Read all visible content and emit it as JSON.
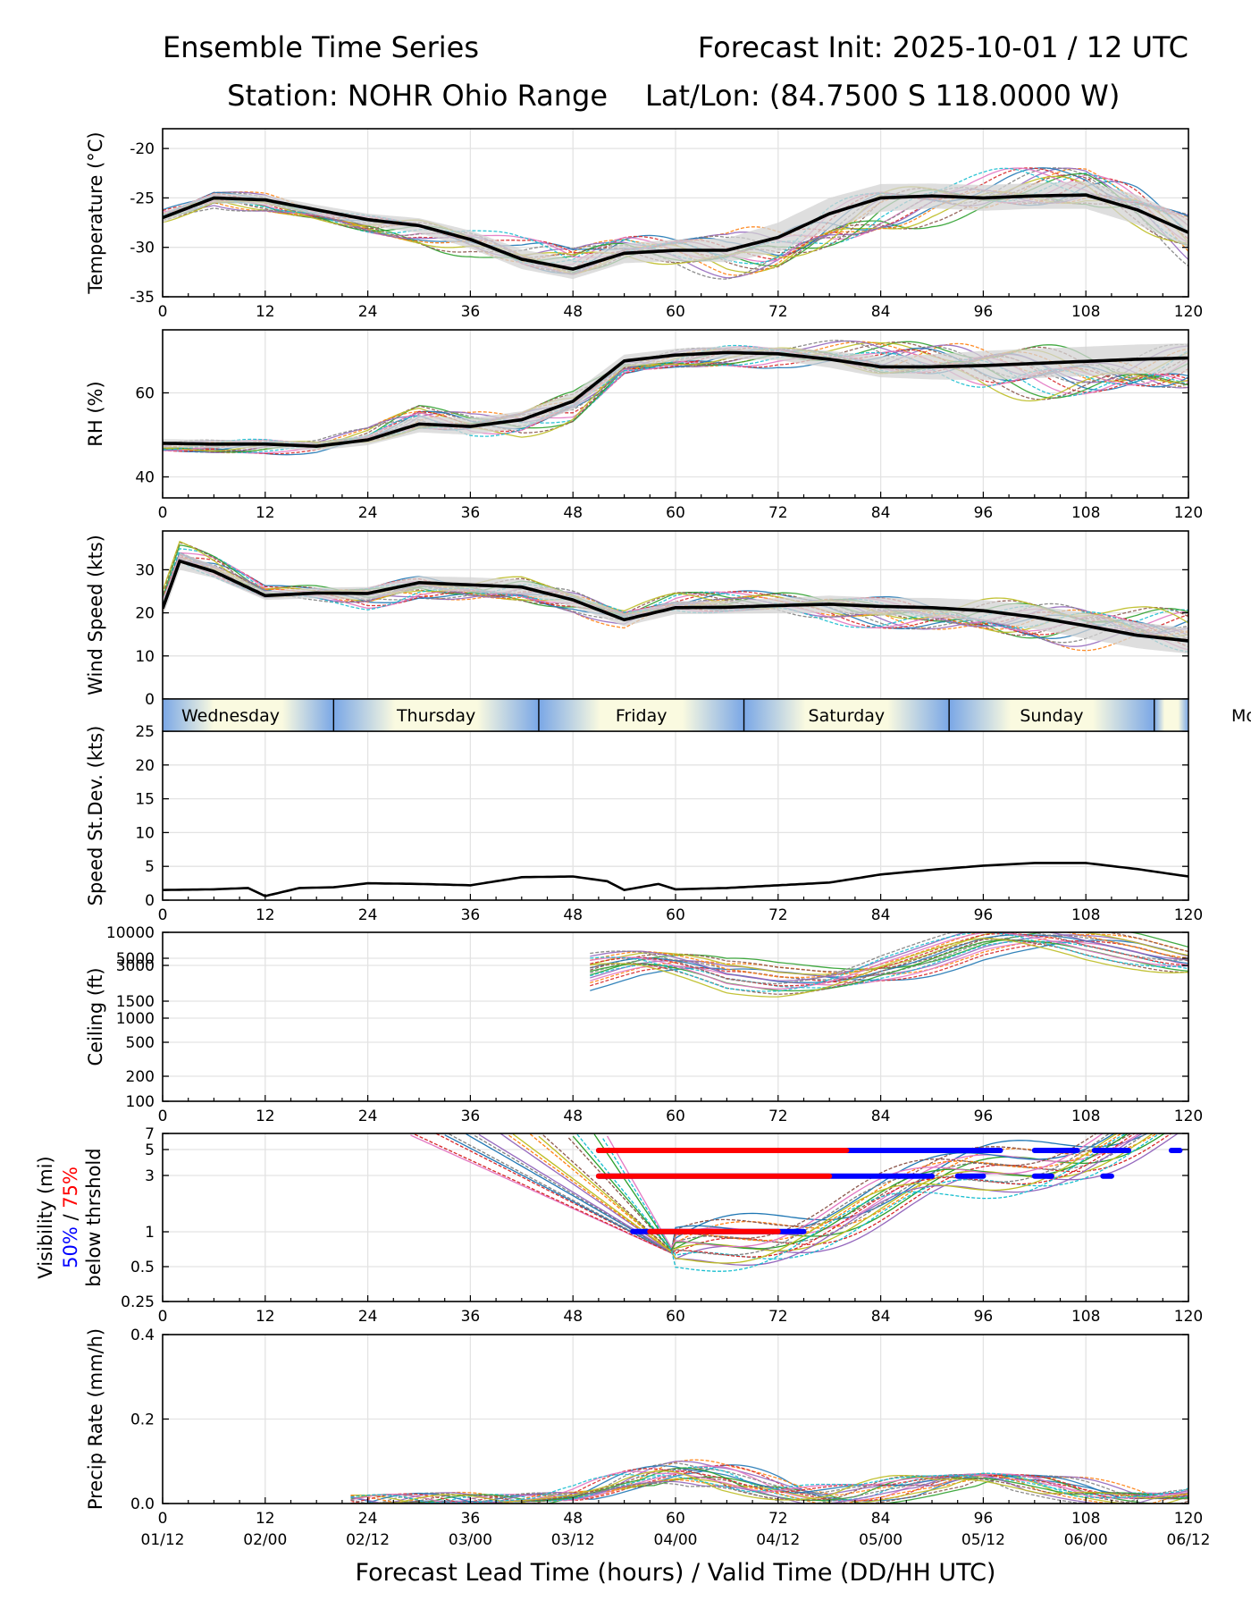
{
  "header": {
    "title_left": "Ensemble Time Series",
    "title_right": "Forecast Init: 2025-10-01 / 12 UTC",
    "station": "Station: NOHR Ohio Range",
    "latlon": "Lat/Lon: (84.7500 S 118.0000 W)"
  },
  "colors": {
    "mean": "#000000",
    "spread": "#d3d3d3",
    "grid": "#e3e3e3",
    "p50": "#0000ff",
    "p75": "#ff0000",
    "members": [
      "#1f77b4",
      "#ff7f0e",
      "#2ca02c",
      "#d62728",
      "#9467bd",
      "#8c564b",
      "#e377c2",
      "#7f7f7f",
      "#bcbd22",
      "#17becf"
    ]
  },
  "chart_data": [
    {
      "type": "line",
      "ylabel": "Temperature (°C)",
      "ylim": [
        -35,
        -18
      ],
      "yticks": [
        "-35",
        "-30",
        "-25",
        "-20"
      ],
      "x": [
        0,
        6,
        12,
        18,
        24,
        30,
        36,
        42,
        48,
        54,
        60,
        66,
        72,
        78,
        84,
        90,
        96,
        102,
        108,
        114,
        120
      ],
      "mean": [
        -27,
        -25,
        -25.2,
        -26.2,
        -27.2,
        -27.8,
        -29.2,
        -31.2,
        -32.2,
        -30.6,
        -30.3,
        -30.3,
        -29,
        -26.6,
        -25,
        -24.8,
        -25,
        -24.8,
        -24.7,
        -26.2,
        -28.5
      ],
      "spread": [
        1,
        1,
        1,
        1,
        1.2,
        1.5,
        1.8,
        2,
        2,
        2,
        2.2,
        2.4,
        3,
        3.2,
        2.8,
        2.5,
        2.6,
        2.6,
        2.8,
        3,
        3
      ]
    },
    {
      "type": "line",
      "ylabel": "RH (%)",
      "ylim": [
        35,
        75
      ],
      "yticks": [
        "40",
        "60"
      ],
      "x": [
        0,
        6,
        12,
        18,
        24,
        30,
        36,
        42,
        48,
        54,
        60,
        66,
        72,
        78,
        84,
        90,
        96,
        102,
        108,
        114,
        120
      ],
      "mean": [
        48,
        47.8,
        47.8,
        47.3,
        48.8,
        52.6,
        52,
        53.6,
        58,
        67.6,
        69,
        69.6,
        69.3,
        68,
        66.2,
        66.2,
        66.5,
        67,
        67.5,
        68,
        68.3
      ],
      "spread": [
        2,
        2,
        2,
        2,
        2.5,
        4,
        4,
        4,
        4,
        3,
        3,
        3,
        3,
        4,
        5,
        6,
        7,
        7,
        7,
        7,
        7
      ]
    },
    {
      "type": "line",
      "ylabel": "Wind Speed (kts)",
      "ylim": [
        0,
        39
      ],
      "yticks": [
        "0",
        "10",
        "20",
        "30"
      ],
      "x": [
        0,
        2,
        6,
        12,
        18,
        24,
        30,
        36,
        42,
        48,
        54,
        60,
        66,
        72,
        78,
        84,
        90,
        96,
        102,
        108,
        114,
        120
      ],
      "mean": [
        21,
        32,
        29.6,
        24,
        24.6,
        24.5,
        27,
        26.5,
        26,
        23,
        18.4,
        21.2,
        21.3,
        21.7,
        22,
        21.5,
        21.2,
        20.5,
        19,
        17,
        14.8,
        13.5
      ],
      "spread": [
        4,
        4,
        3,
        2,
        2.5,
        3,
        3,
        3.5,
        3.5,
        3,
        3,
        3,
        3,
        3.5,
        4,
        4,
        4.5,
        5,
        5.5,
        6,
        6,
        6
      ]
    },
    {
      "type": "line",
      "ylabel": "Speed St.Dev. (kts)",
      "ylim": [
        0,
        25
      ],
      "yticks": [
        "0",
        "5",
        "10",
        "15",
        "20",
        "25"
      ],
      "x": [
        0,
        6,
        10,
        12,
        16,
        20,
        24,
        30,
        36,
        42,
        48,
        52,
        54,
        58,
        60,
        66,
        72,
        78,
        84,
        90,
        96,
        102,
        108,
        114,
        120
      ],
      "values": [
        1.5,
        1.6,
        1.8,
        0.6,
        1.8,
        1.9,
        2.5,
        2.4,
        2.2,
        3.4,
        3.5,
        2.8,
        1.5,
        2.4,
        1.6,
        1.8,
        2.2,
        2.6,
        3.8,
        4.5,
        5.1,
        5.5,
        5.5,
        4.6,
        3.5
      ]
    },
    {
      "type": "line",
      "ylabel": "Ceiling (ft)",
      "yscale": "log",
      "ylim": [
        100,
        10000
      ],
      "yticks": [
        "100",
        "200",
        "500",
        "1000",
        "1500",
        "3000",
        "5000",
        "10000"
      ],
      "x": [
        56,
        60,
        66,
        72,
        78,
        84,
        90,
        96,
        102,
        108,
        114,
        120
      ],
      "mean": [
        3000,
        2800,
        2600,
        3200,
        4200,
        5200,
        5500,
        6000,
        5500,
        5600,
        6200,
        6500
      ]
    },
    {
      "type": "line",
      "ylabel": "Visibility (mi)",
      "ylabel_p50": "50%",
      "ylabel_sep": " / ",
      "ylabel_p75": "75%",
      "ylabel_below": "below thrshold",
      "yscale": "log",
      "ylim": [
        0.25,
        7
      ],
      "yticks": [
        "0.25",
        "0.5",
        "1",
        "3",
        "5",
        "7"
      ],
      "thresholds": [
        {
          "level": 5,
          "p75": [
            [
              51,
              80
            ]
          ],
          "p50": [
            [
              51,
              98
            ],
            [
              102,
              107
            ],
            [
              109,
              113
            ],
            [
              118,
              119
            ]
          ]
        },
        {
          "level": 3,
          "p75": [
            [
              51,
              78
            ]
          ],
          "p50": [
            [
              51,
              90
            ],
            [
              93,
              96
            ],
            [
              102,
              104
            ],
            [
              110,
              111
            ]
          ]
        },
        {
          "level": 1,
          "p75": [
            [
              57,
              72
            ]
          ],
          "p50": [
            [
              55,
              75
            ]
          ]
        }
      ]
    },
    {
      "type": "line",
      "ylabel": "Precip Rate (mm/h)",
      "ylim": [
        0,
        0.4
      ],
      "yticks": [
        "0.0",
        "0.2",
        "0.4"
      ],
      "x": [
        0,
        24,
        30,
        36,
        48,
        54,
        60,
        66,
        72,
        78,
        84,
        90,
        96,
        102,
        108,
        114,
        120
      ],
      "mean": [
        0,
        0,
        0.003,
        0.005,
        0.012,
        0.025,
        0.035,
        0.04,
        0.04,
        0.032,
        0.03,
        0.028,
        0.03,
        0.028,
        0.026,
        0.022,
        0.02
      ]
    }
  ],
  "day_strip": [
    "Wednesday",
    "Thursday",
    "Friday",
    "Saturday",
    "Sunday",
    "Mon"
  ],
  "x_axis": {
    "ticks": [
      "0",
      "12",
      "24",
      "36",
      "48",
      "60",
      "72",
      "84",
      "96",
      "108",
      "120"
    ],
    "valid_times": [
      "01/12",
      "02/00",
      "02/12",
      "03/00",
      "03/12",
      "04/00",
      "04/12",
      "05/00",
      "05/12",
      "06/00",
      "06/12"
    ],
    "label": "Forecast Lead Time (hours) / Valid Time (DD/HH UTC)"
  }
}
